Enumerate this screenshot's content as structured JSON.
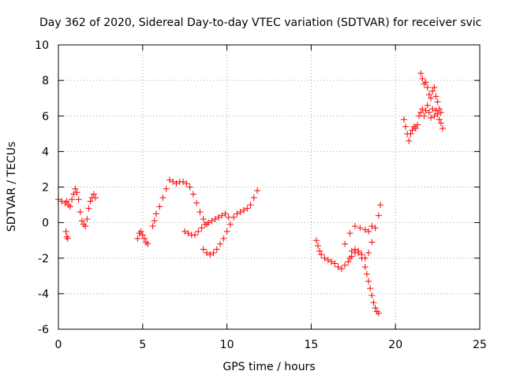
{
  "chart_data": {
    "type": "scatter",
    "title": "Day 362 of 2020, Sidereal Day-to-day VTEC variation (SDTVAR) for receiver svic",
    "xlabel": "GPS time / hours",
    "ylabel": "SDTVAR / TECUs",
    "xlim": [
      0,
      25
    ],
    "ylim": [
      -6,
      10
    ],
    "xticks": [
      0,
      5,
      10,
      15,
      20,
      25
    ],
    "yticks": [
      -6,
      -4,
      -2,
      0,
      2,
      4,
      6,
      8,
      10
    ],
    "grid": true,
    "marker": "+",
    "color": "#ff0000",
    "series": [
      {
        "name": "SDTVAR",
        "x": [
          0.0,
          0.2,
          0.4,
          0.5,
          0.6,
          0.7,
          0.8,
          0.9,
          1.0,
          1.1,
          1.2,
          1.3,
          1.4,
          1.5,
          1.6,
          1.7,
          1.8,
          1.9,
          2.0,
          2.1,
          2.2,
          0.45,
          0.5,
          0.55,
          4.7,
          4.8,
          4.9,
          5.0,
          5.1,
          5.2,
          5.3,
          5.6,
          5.7,
          5.8,
          6.0,
          6.2,
          6.4,
          6.6,
          6.8,
          7.0,
          7.2,
          7.4,
          7.6,
          7.8,
          8.0,
          8.2,
          8.4,
          8.6,
          8.8,
          7.5,
          7.7,
          7.9,
          8.1,
          8.3,
          8.5,
          8.7,
          8.9,
          9.1,
          9.3,
          9.5,
          9.7,
          9.9,
          10.1,
          8.6,
          8.8,
          9.0,
          9.2,
          9.4,
          9.6,
          9.8,
          10.0,
          10.2,
          10.4,
          10.6,
          10.8,
          11.0,
          11.2,
          11.4,
          11.6,
          11.8,
          15.3,
          15.4,
          15.5,
          15.6,
          15.8,
          16.0,
          16.2,
          16.4,
          16.6,
          16.8,
          17.0,
          17.2,
          17.3,
          17.4,
          17.6,
          17.8,
          18.0,
          18.2,
          18.4,
          18.6,
          18.8,
          19.0,
          19.1,
          17.4,
          17.6,
          17.8,
          18.0,
          18.2,
          18.3,
          18.4,
          18.5,
          18.6,
          18.7,
          18.8,
          18.9,
          19.0,
          17.0,
          17.3,
          17.6,
          17.9,
          18.2,
          18.4,
          18.6,
          20.5,
          20.6,
          20.7,
          20.8,
          20.9,
          21.0,
          21.1,
          21.2,
          21.3,
          21.4,
          21.5,
          21.6,
          21.7,
          21.8,
          21.9,
          22.0,
          22.1,
          22.2,
          22.3,
          22.4,
          22.5,
          22.6,
          22.7,
          22.8,
          21.5,
          21.6,
          21.7,
          21.8,
          21.9,
          22.0,
          22.1,
          22.2,
          22.3,
          22.4,
          22.5,
          22.6,
          22.7
        ],
        "y": [
          1.3,
          1.2,
          1.1,
          1.2,
          1.0,
          0.9,
          1.3,
          1.6,
          1.9,
          1.7,
          1.3,
          0.6,
          0.1,
          -0.1,
          -0.2,
          0.2,
          0.8,
          1.2,
          1.4,
          1.6,
          1.4,
          -0.5,
          -0.8,
          -0.9,
          -0.9,
          -0.6,
          -0.5,
          -0.7,
          -0.9,
          -1.1,
          -1.2,
          -0.2,
          0.1,
          0.5,
          0.9,
          1.4,
          1.9,
          2.4,
          2.3,
          2.2,
          2.3,
          2.3,
          2.2,
          2.0,
          1.6,
          1.1,
          0.6,
          0.2,
          -0.1,
          -0.5,
          -0.6,
          -0.7,
          -0.7,
          -0.5,
          -0.3,
          -0.1,
          0.0,
          0.1,
          0.2,
          0.3,
          0.4,
          0.5,
          0.3,
          -1.5,
          -1.7,
          -1.8,
          -1.7,
          -1.5,
          -1.2,
          -0.9,
          -0.5,
          -0.1,
          0.3,
          0.5,
          0.6,
          0.7,
          0.8,
          1.0,
          1.4,
          1.8,
          -1.0,
          -1.3,
          -1.6,
          -1.8,
          -2.0,
          -2.1,
          -2.2,
          -2.3,
          -2.5,
          -2.6,
          -2.4,
          -2.2,
          -2.0,
          -1.9,
          -1.7,
          -1.6,
          -1.8,
          -2.0,
          -1.7,
          -1.1,
          -0.3,
          0.4,
          1.0,
          -1.6,
          -1.5,
          -1.7,
          -2.0,
          -2.5,
          -2.9,
          -3.3,
          -3.7,
          -4.1,
          -4.5,
          -4.8,
          -5.0,
          -5.1,
          -1.2,
          -0.6,
          -0.2,
          -0.3,
          -0.4,
          -0.5,
          -0.2,
          5.8,
          5.4,
          5.0,
          4.6,
          5.0,
          5.2,
          5.4,
          5.3,
          5.5,
          6.0,
          6.2,
          6.4,
          6.0,
          6.3,
          6.6,
          6.2,
          5.9,
          6.4,
          6.0,
          6.3,
          6.1,
          5.8,
          5.6,
          5.3,
          8.4,
          8.1,
          7.8,
          7.9,
          7.6,
          7.2,
          7.0,
          7.4,
          7.6,
          7.1,
          6.8,
          6.4,
          6.2
        ]
      }
    ]
  }
}
